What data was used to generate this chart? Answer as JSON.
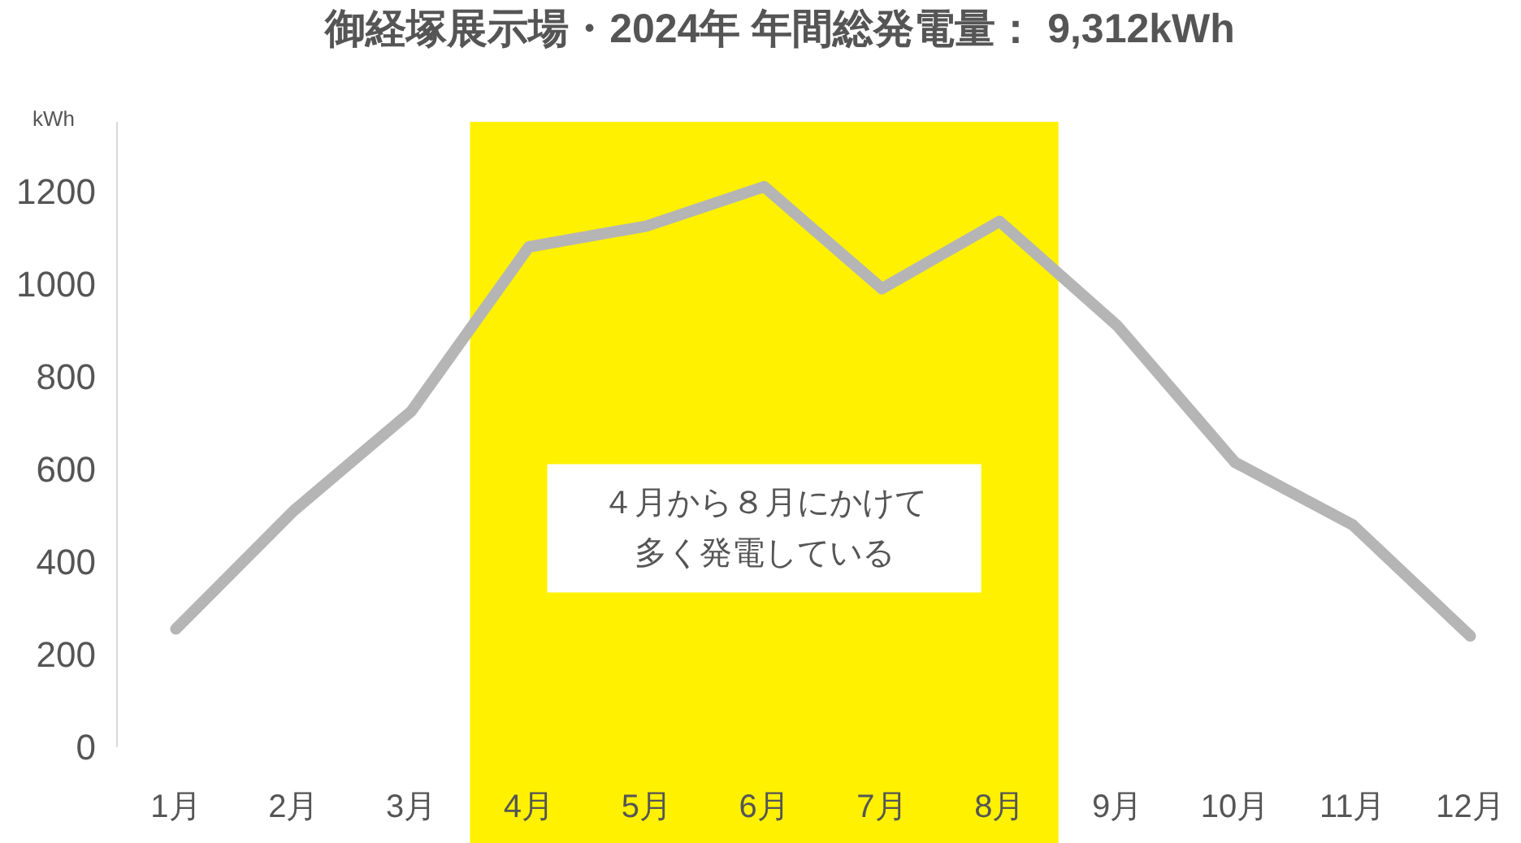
{
  "chart_data": {
    "type": "line",
    "title": "御経塚展示場・2024年 年間総発電量： 9,312kWh",
    "ylabel": "kWh",
    "categories": [
      "1月",
      "2月",
      "3月",
      "4月",
      "5月",
      "6月",
      "7月",
      "8月",
      "9月",
      "10月",
      "11月",
      "12月"
    ],
    "series": [
      {
        "color": "#b5b5b5",
        "values": [
          255,
          510,
          725,
          1080,
          1125,
          1210,
          990,
          1135,
          910,
          615,
          480,
          240
        ]
      }
    ],
    "ylim": [
      0,
      1350
    ],
    "yticks": [
      0,
      200,
      400,
      600,
      800,
      1000,
      1200
    ],
    "bands": [
      {
        "axis": "x",
        "from": "4月",
        "to": "8月",
        "color": "#fff100"
      }
    ],
    "annotations": [
      "４月から８月にかけて",
      "多く発電している"
    ],
    "grid": false,
    "marker": "none",
    "line_style": "solid"
  }
}
